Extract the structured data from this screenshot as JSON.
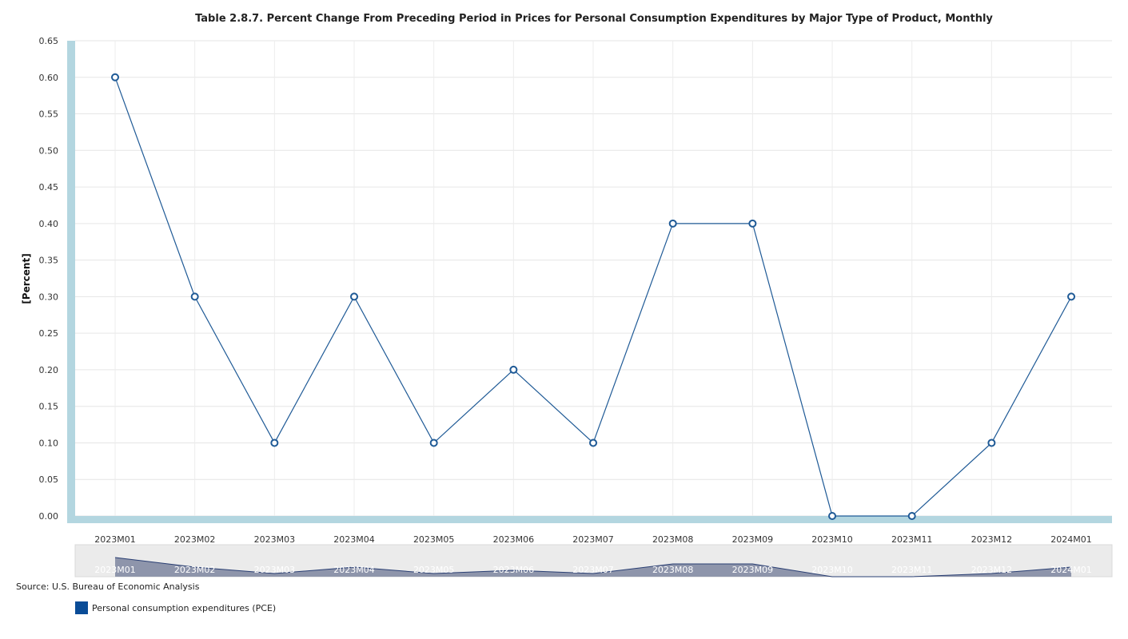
{
  "chart_data": {
    "type": "line",
    "title": "Table 2.8.7. Percent Change From Preceding Period in Prices for Personal Consumption Expenditures by Major Type of Product, Monthly",
    "ylabel": "[Percent]",
    "xlabel": "",
    "categories": [
      "2023M01",
      "2023M02",
      "2023M03",
      "2023M04",
      "2023M05",
      "2023M06",
      "2023M07",
      "2023M08",
      "2023M09",
      "2023M10",
      "2023M11",
      "2023M12",
      "2024M01"
    ],
    "series": [
      {
        "name": "Personal consumption expenditures (PCE)",
        "values": [
          0.6,
          0.3,
          0.1,
          0.3,
          0.1,
          0.2,
          0.1,
          0.4,
          0.4,
          0.0,
          0.0,
          0.1,
          0.3
        ]
      }
    ],
    "ylim": [
      0,
      0.65
    ],
    "yticks": [
      "0.00",
      "0.05",
      "0.10",
      "0.15",
      "0.20",
      "0.25",
      "0.30",
      "0.35",
      "0.40",
      "0.45",
      "0.50",
      "0.55",
      "0.60",
      "0.65"
    ],
    "grid": true,
    "legend": "bottom-left",
    "colors": {
      "line": "#1f5a96",
      "axis": "#b3d6e0",
      "navigator_fill": "#8e95ab",
      "navigator_bg": "#ebebeb",
      "legend_swatch": "#0a4c97"
    },
    "navigator": true
  },
  "footer": {
    "source": "Source: U.S. Bureau of Economic Analysis"
  }
}
